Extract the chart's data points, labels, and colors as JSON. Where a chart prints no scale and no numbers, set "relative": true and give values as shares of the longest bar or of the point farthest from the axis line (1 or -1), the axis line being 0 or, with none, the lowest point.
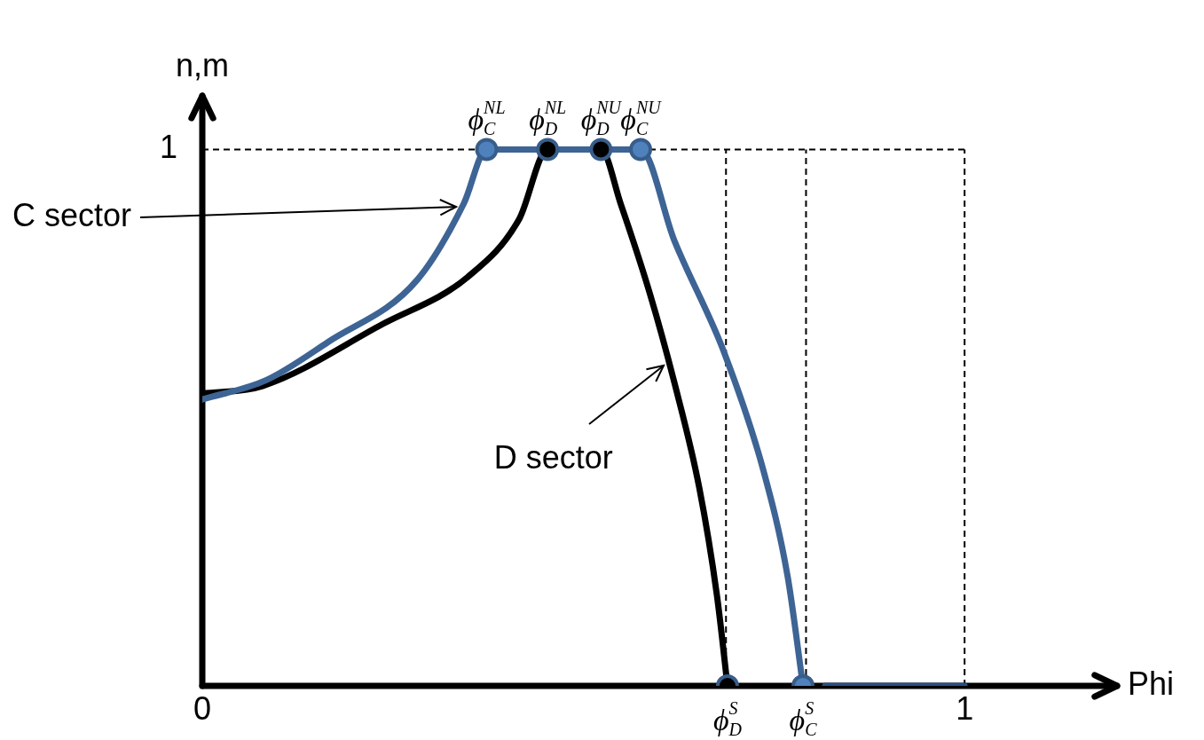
{
  "chart_data": {
    "type": "line",
    "xlabel": "Phi",
    "ylabel": "n,m",
    "xlim": [
      0,
      1.2
    ],
    "relative": true,
    "xticks": [
      0,
      1
    ],
    "grid": false,
    "legend": false,
    "line_style": "solid",
    "marker": "none",
    "series": [
      {
        "color": "#3d6494",
        "x": [
          0,
          0.084,
          0.165,
          0.282,
          0.343,
          0.373,
          0.575,
          0.619,
          0.685,
          0.736,
          0.768,
          0.788
        ],
        "values": [
          0.534,
          0.57,
          0.641,
          0.757,
          0.899,
          1,
          1,
          0.831,
          0.62,
          0.402,
          0.203,
          0
        ]
      },
      {
        "color": "#000000",
        "x": [
          0,
          0.079,
          0.236,
          0.348,
          0.416,
          0.453,
          0.523,
          0.549,
          0.587,
          0.619,
          0.652,
          0.675,
          0.689
        ],
        "values": [
          0.545,
          0.559,
          0.674,
          0.762,
          0.871,
          1,
          1,
          0.898,
          0.732,
          0.567,
          0.369,
          0.17,
          0
        ]
      },
      {
        "color": "#2a4f80",
        "x": [
          0.817,
          1
        ],
        "values": [
          0,
          0
        ]
      },
      {
        "type": "scatter",
        "marker": "circle",
        "color": "#4f81bd",
        "x": [
          0.373,
          0.575,
          0.788
        ],
        "values": [
          1,
          1,
          0
        ]
      },
      {
        "type": "scatter",
        "marker": "circle",
        "color": "#000000",
        "x": [
          0.453,
          0.523,
          0.689
        ],
        "values": [
          1,
          1,
          0
        ]
      }
    ],
    "ref_lines": [
      {
        "axis": "y",
        "value": 1,
        "label": "1",
        "line_style": "dashed",
        "color": "#000000"
      },
      {
        "axis": "x",
        "value": 0.687,
        "line_style": "dashed",
        "color": "#000000"
      },
      {
        "axis": "x",
        "value": 0.792,
        "line_style": "dashed",
        "color": "#000000"
      },
      {
        "axis": "x",
        "value": 1,
        "line_style": "dashed",
        "color": "#000000"
      }
    ],
    "annotations": [
      {
        "text": "C sector",
        "x": 0.34,
        "y": 0.899
      },
      {
        "text": "D sector",
        "x": 0.612,
        "y": 0.603
      },
      {
        "text": "ϕ$_{C}$$^{NL}$",
        "x": 0.373,
        "y": 1
      },
      {
        "text": "ϕ$_{D}$$^{NL}$",
        "x": 0.453,
        "y": 1
      },
      {
        "text": "ϕ$_{D}$$^{NU}$",
        "x": 0.523,
        "y": 1
      },
      {
        "text": "ϕ$_{C}$$^{NU}$",
        "x": 0.575,
        "y": 1
      },
      {
        "text": "ϕ$_{D}$$^{S}$",
        "x": 0.689,
        "y": 0
      },
      {
        "text": "ϕ$_{C}$$^{S}$",
        "x": 0.788,
        "y": 0
      }
    ]
  }
}
